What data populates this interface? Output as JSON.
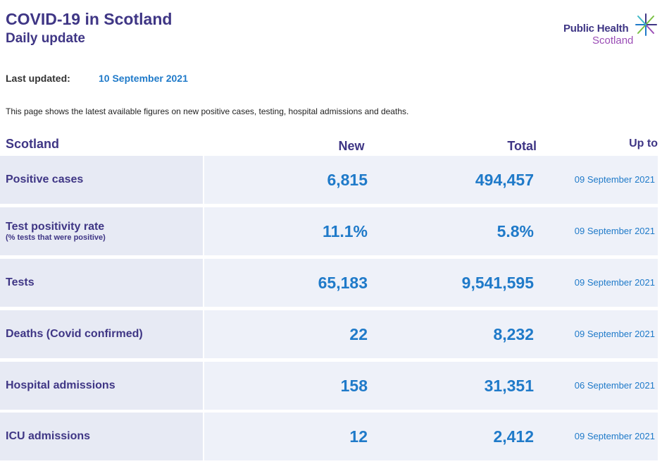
{
  "header": {
    "title": "COVID-19 in Scotland",
    "subtitle": "Daily update"
  },
  "logo": {
    "line1": "Public Health",
    "line2": "Scotland",
    "icon": "star-burst-icon"
  },
  "last_updated": {
    "label": "Last updated:",
    "value": "10 September 2021"
  },
  "intro": "This page shows the latest available figures on new positive cases, testing, hospital admissions and deaths.",
  "table": {
    "headers": {
      "region": "Scotland",
      "new": "New",
      "total": "Total",
      "up_to": "Up to"
    },
    "rows": [
      {
        "label": "Positive cases",
        "sublabel": "",
        "new": "6,815",
        "total": "494,457",
        "up_to": "09 September 2021"
      },
      {
        "label": "Test positivity rate",
        "sublabel": "(% tests that were positive)",
        "new": "11.1%",
        "total": "5.8%",
        "up_to": "09 September 2021"
      },
      {
        "label": "Tests",
        "sublabel": "",
        "new": "65,183",
        "total": "9,541,595",
        "up_to": "09 September 2021"
      },
      {
        "label": "Deaths (Covid confirmed)",
        "sublabel": "",
        "new": "22",
        "total": "8,232",
        "up_to": "09 September 2021"
      },
      {
        "label": "Hospital admissions",
        "sublabel": "",
        "new": "158",
        "total": "31,351",
        "up_to": "06 September 2021"
      },
      {
        "label": "ICU admissions",
        "sublabel": "",
        "new": "12",
        "total": "2,412",
        "up_to": "09 September 2021"
      }
    ]
  },
  "colors": {
    "primary": "#3f3685",
    "accent": "#1f7ac9",
    "logo_secondary": "#9b4db6",
    "row_bg": "#eef1f9"
  }
}
